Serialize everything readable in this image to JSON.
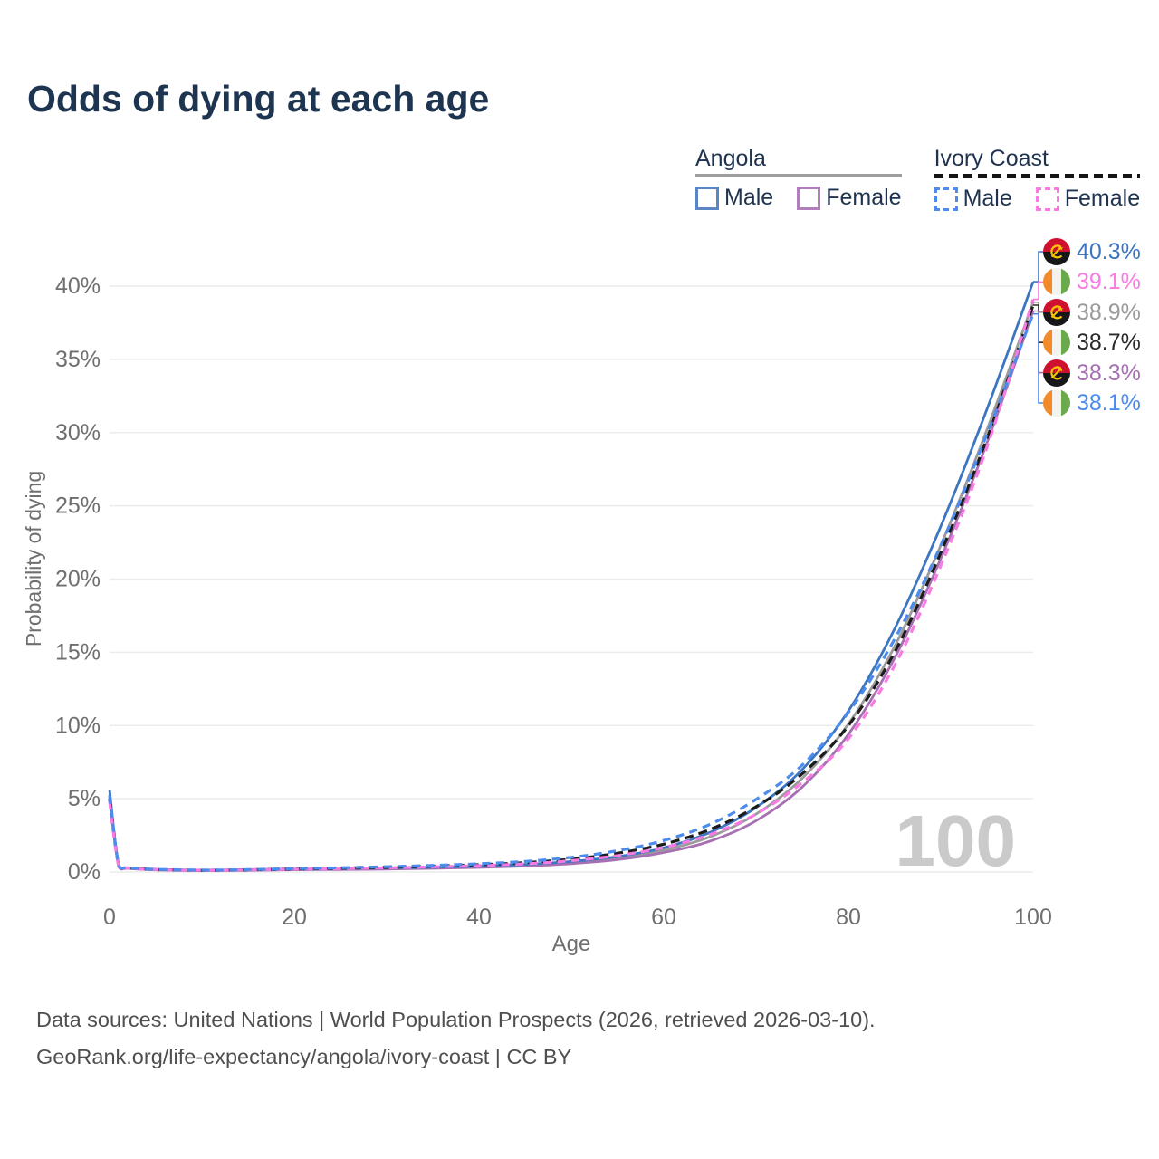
{
  "title": "Odds of dying at each age",
  "watermark": "100",
  "legend": {
    "groups": [
      {
        "label": "Angola",
        "line_style": "solid",
        "line_color": "#9e9e9e",
        "items": [
          {
            "label": "Male",
            "color": "#3d76c0",
            "dashed": false
          },
          {
            "label": "Female",
            "color": "#a770b2",
            "dashed": false
          }
        ]
      },
      {
        "label": "Ivory Coast",
        "line_style": "dashed",
        "line_color": "#141414",
        "items": [
          {
            "label": "Male",
            "color": "#4d8cec",
            "dashed": true
          },
          {
            "label": "Female",
            "color": "#f97ae3",
            "dashed": true
          }
        ]
      }
    ]
  },
  "chart_data": {
    "type": "line",
    "title": "Odds of dying at each age",
    "xlabel": "Age",
    "ylabel": "Probability of dying",
    "xlim": [
      0,
      100
    ],
    "ylim": [
      0,
      42
    ],
    "x_ticks": [
      0,
      20,
      40,
      60,
      80,
      100
    ],
    "y_ticks": [
      0,
      5,
      10,
      15,
      20,
      25,
      30,
      35,
      40
    ],
    "grid": "horizontal",
    "legend_position": "top-right",
    "ages": [
      0,
      1,
      2,
      5,
      10,
      15,
      20,
      25,
      30,
      35,
      40,
      45,
      50,
      55,
      60,
      65,
      70,
      75,
      80,
      85,
      90,
      95,
      100
    ],
    "series": [
      {
        "id": "angola-both",
        "name": "Angola (both sexes)",
        "country": "Angola",
        "color": "#9b9b9b",
        "dashed": false,
        "values": [
          5.3,
          0.37,
          0.26,
          0.15,
          0.1,
          0.12,
          0.17,
          0.2,
          0.24,
          0.29,
          0.36,
          0.47,
          0.65,
          0.95,
          1.5,
          2.4,
          3.95,
          6.4,
          10.1,
          15.4,
          22.3,
          30.2,
          38.9
        ]
      },
      {
        "id": "angola-female",
        "name": "Angola Female",
        "country": "Angola",
        "color": "#a770b2",
        "dashed": false,
        "values": [
          5.0,
          0.34,
          0.24,
          0.14,
          0.09,
          0.11,
          0.15,
          0.17,
          0.2,
          0.25,
          0.31,
          0.41,
          0.57,
          0.84,
          1.33,
          2.1,
          3.5,
          5.8,
          9.4,
          14.6,
          21.4,
          29.3,
          38.3
        ]
      },
      {
        "id": "angola-male",
        "name": "Angola Male",
        "country": "Angola",
        "color": "#3d76c0",
        "dashed": false,
        "values": [
          5.6,
          0.4,
          0.28,
          0.16,
          0.11,
          0.13,
          0.19,
          0.23,
          0.27,
          0.32,
          0.4,
          0.52,
          0.72,
          1.05,
          1.65,
          2.7,
          4.4,
          7.0,
          11.0,
          16.6,
          23.6,
          31.6,
          40.3
        ]
      },
      {
        "id": "ivory-coast-both",
        "name": "Ivory Coast (both sexes)",
        "country": "Ivory Coast",
        "color": "#1c1c1c",
        "dashed": true,
        "values": [
          5.0,
          0.42,
          0.28,
          0.17,
          0.12,
          0.15,
          0.21,
          0.26,
          0.32,
          0.4,
          0.5,
          0.64,
          0.88,
          1.28,
          1.9,
          2.9,
          4.45,
          6.7,
          10.0,
          15.0,
          21.8,
          29.6,
          38.7
        ]
      },
      {
        "id": "ivory-coast-female",
        "name": "Ivory Coast Female",
        "country": "Ivory Coast",
        "color": "#f97ae3",
        "dashed": true,
        "values": [
          4.8,
          0.39,
          0.26,
          0.16,
          0.11,
          0.14,
          0.19,
          0.23,
          0.28,
          0.35,
          0.44,
          0.56,
          0.77,
          1.12,
          1.67,
          2.55,
          3.95,
          6.1,
          9.1,
          14.1,
          20.9,
          29.0,
          39.1
        ]
      },
      {
        "id": "ivory-coast-male",
        "name": "Ivory Coast Male",
        "country": "Ivory Coast",
        "color": "#4d8cec",
        "dashed": true,
        "values": [
          5.2,
          0.45,
          0.3,
          0.18,
          0.13,
          0.16,
          0.23,
          0.29,
          0.36,
          0.45,
          0.56,
          0.72,
          1.0,
          1.45,
          2.15,
          3.25,
          4.95,
          7.3,
          10.9,
          15.9,
          22.3,
          29.9,
          38.1
        ]
      }
    ],
    "end_labels": [
      {
        "series": "angola-male",
        "country": "angola",
        "value": "40.3%",
        "color": "#3d76c0"
      },
      {
        "series": "ivory-coast-female",
        "country": "ivory-coast",
        "value": "39.1%",
        "color": "#f97ae3"
      },
      {
        "series": "angola-both",
        "country": "angola",
        "value": "38.9%",
        "color": "#9b9b9b"
      },
      {
        "series": "ivory-coast-both",
        "country": "ivory-coast",
        "value": "38.7%",
        "color": "#2b2b2b"
      },
      {
        "series": "angola-female",
        "country": "angola",
        "value": "38.3%",
        "color": "#a770b2"
      },
      {
        "series": "ivory-coast-male",
        "country": "ivory-coast",
        "value": "38.1%",
        "color": "#4d8cec"
      }
    ],
    "flag_colors": {
      "angola": {
        "red": "#d0102f",
        "black": "#17171a",
        "yellow": "#f7c600"
      },
      "ivory_coast": {
        "orange": "#f28a2a",
        "white": "#f4f2ee",
        "green": "#6ba94d"
      }
    },
    "style": {
      "grid_color": "#ececec",
      "tick_color": "#6f6f6f",
      "watermark_color": "#cacaca"
    }
  },
  "footer": {
    "line1": "Data sources: United Nations | World Population Prospects (2026, retrieved 2026-03-10).",
    "line2": "GeoRank.org/life-expectancy/angola/ivory-coast | CC BY"
  }
}
